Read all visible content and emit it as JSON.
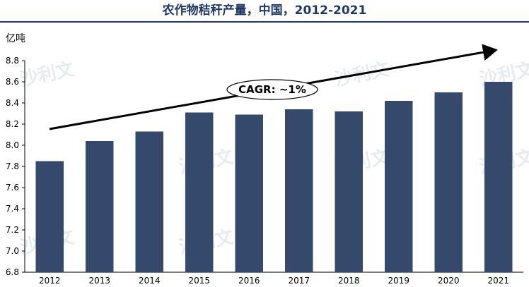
{
  "header": {
    "title": "农作物秸秆产量，中国，2012-2021"
  },
  "chart_data": {
    "type": "bar",
    "ylabel": "亿吨",
    "categories": [
      "2012",
      "2013",
      "2014",
      "2015",
      "2016",
      "2017",
      "2018",
      "2019",
      "2020",
      "2021"
    ],
    "values": [
      7.85,
      8.04,
      8.13,
      8.31,
      8.29,
      8.34,
      8.32,
      8.42,
      8.5,
      8.6
    ],
    "ylim": [
      6.8,
      8.8
    ],
    "yticks": [
      "6.8",
      "7.0",
      "7.2",
      "7.4",
      "7.6",
      "7.8",
      "8.0",
      "8.2",
      "8.4",
      "8.6",
      "8.8"
    ],
    "bar_color": "#34496b",
    "annotation": "CAGR: ~1%",
    "legend": "none",
    "grid": false
  },
  "watermark": {
    "text": "沙利文"
  }
}
